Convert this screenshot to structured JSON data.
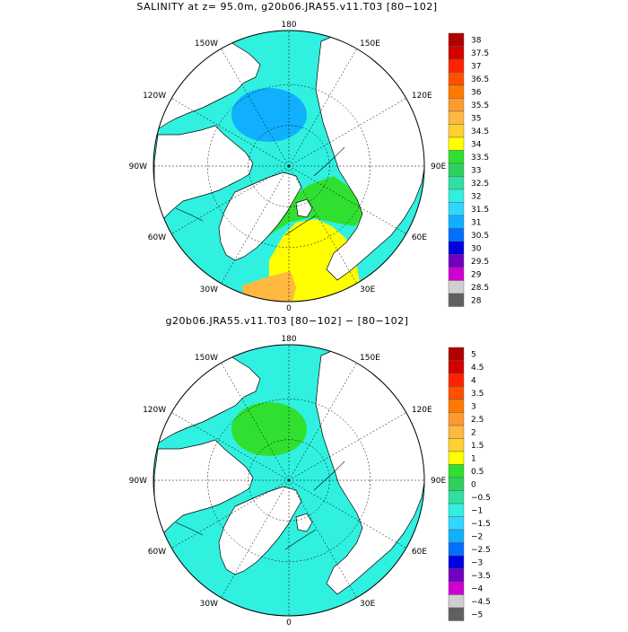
{
  "maps": [
    {
      "title": "SALINITY at z=  95.0m, g20b06.JRA55.v11.T03 [80−102]",
      "lon_labels": {
        "top": "180",
        "upper_left": "150W",
        "upper_right": "150E",
        "left_upper": "120W",
        "right_upper": "120E",
        "left": "90W",
        "right": "90E",
        "left_lower": "60W",
        "right_lower": "60E",
        "lower_left": "30W",
        "lower_right": "30E",
        "bottom": "0"
      },
      "colorbar": [
        "38",
        "37.5",
        "37",
        "36.5",
        "36",
        "35.5",
        "35",
        "34.5",
        "34",
        "33.5",
        "33",
        "32.5",
        "32",
        "31.5",
        "31",
        "30.5",
        "30",
        "29.5",
        "29",
        "28.5",
        "28"
      ],
      "colorbar_colors": [
        "#b00000",
        "#d40000",
        "#ff2200",
        "#ff5000",
        "#ff7a00",
        "#ff9a30",
        "#ffb840",
        "#ffd030",
        "#ffff00",
        "#30e030",
        "#30d060",
        "#30e0a0",
        "#30f0e0",
        "#30d8ff",
        "#10b0ff",
        "#0070ff",
        "#0000e0",
        "#7000c0",
        "#d000d0",
        "#d0d0d0",
        "#606060"
      ],
      "fields": {
        "ocean": "#30f0e0",
        "basin": "#10b0ff",
        "atlantic": "#ffff00",
        "nordic_seas": "#30e030",
        "warm_core": "#ffb840",
        "hudson_bay": "#7000c0",
        "hudson_bay_edge": "#0070ff"
      }
    },
    {
      "title": "g20b06.JRA55.v11.T03 [80−102] −  [80−102]",
      "lon_labels": {
        "top": "180",
        "upper_left": "150W",
        "upper_right": "150E",
        "left_upper": "120W",
        "right_upper": "120E",
        "left": "90W",
        "right": "90E",
        "left_lower": "60W",
        "right_lower": "60E",
        "lower_left": "30W",
        "lower_right": "30E",
        "bottom": "0"
      },
      "colorbar": [
        "5",
        "4.5",
        "4",
        "3.5",
        "3",
        "2.5",
        "2",
        "1.5",
        "1",
        "0.5",
        "0",
        "−0.5",
        "−1",
        "−1.5",
        "−2",
        "−2.5",
        "−3",
        "−3.5",
        "−4",
        "−4.5",
        "−5"
      ],
      "colorbar_colors": [
        "#b00000",
        "#d40000",
        "#ff2200",
        "#ff5000",
        "#ff7a00",
        "#ff9a30",
        "#ffb840",
        "#ffd030",
        "#ffff00",
        "#30e030",
        "#30d060",
        "#30e0a0",
        "#30f0e0",
        "#30d8ff",
        "#10b0ff",
        "#0070ff",
        "#0000e0",
        "#7000c0",
        "#d000d0",
        "#d0d0d0",
        "#606060"
      ],
      "fields": {
        "ocean": "#30f0e0",
        "basin": "#30e030",
        "atlantic": "#30f0e0",
        "nordic_seas": "#30f0e0",
        "warm_core": "#30f0e0",
        "hudson_bay": "#30e030",
        "hudson_bay_edge": "#30e030"
      }
    }
  ]
}
